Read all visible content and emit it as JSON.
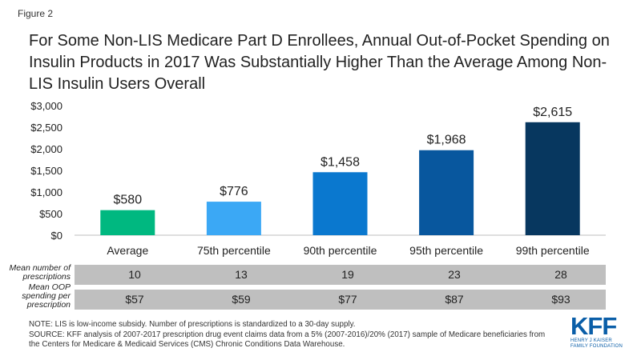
{
  "figure_label": "Figure 2",
  "title": "For Some Non-LIS Medicare Part D Enrollees, Annual Out-of-Pocket Spending on Insulin Products in 2017 Was Substantially Higher Than the Average Among Non-LIS Insulin Users Overall",
  "chart_data": {
    "type": "bar",
    "categories": [
      "Average",
      "75th percentile",
      "90th percentile",
      "95th percentile",
      "99th percentile"
    ],
    "values": [
      580,
      776,
      1458,
      1968,
      2615
    ],
    "value_labels": [
      "$580",
      "$776",
      "$1,458",
      "$1,968",
      "$2,615"
    ],
    "colors": [
      "#00b880",
      "#3ba8f5",
      "#0a78cf",
      "#08579e",
      "#07375f"
    ],
    "y_ticks": [
      0,
      500,
      1000,
      1500,
      2000,
      2500,
      3000
    ],
    "y_tick_labels": [
      "$0",
      "$500",
      "$1,000",
      "$1,500",
      "$2,000",
      "$2,500",
      "$3,000"
    ],
    "ylim": [
      0,
      3000
    ],
    "grid": false,
    "title": "",
    "xlabel": "",
    "ylabel": ""
  },
  "table": {
    "rows": [
      {
        "label": "Mean number of prescriptions",
        "values": [
          "10",
          "13",
          "19",
          "23",
          "28"
        ]
      },
      {
        "label": "Mean OOP spending per prescription",
        "values": [
          "$57",
          "$59",
          "$77",
          "$87",
          "$93"
        ]
      }
    ]
  },
  "notes": {
    "note": "NOTE: LIS is low-income subsidy. Number of prescriptions is standardized to a 30-day supply.",
    "source_line1": "SOURCE: KFF analysis of 2007-2017 prescription drug event claims data from a 5% (2007-2016)/20% (2017) sample of Medicare beneficiaries from",
    "source_line2": "the Centers for Medicare & Medicaid Services (CMS) Chronic Conditions Data Warehouse."
  },
  "logo": {
    "main": "KFF",
    "sub_line1": "HENRY J KAISER",
    "sub_line2": "FAMILY FOUNDATION"
  }
}
